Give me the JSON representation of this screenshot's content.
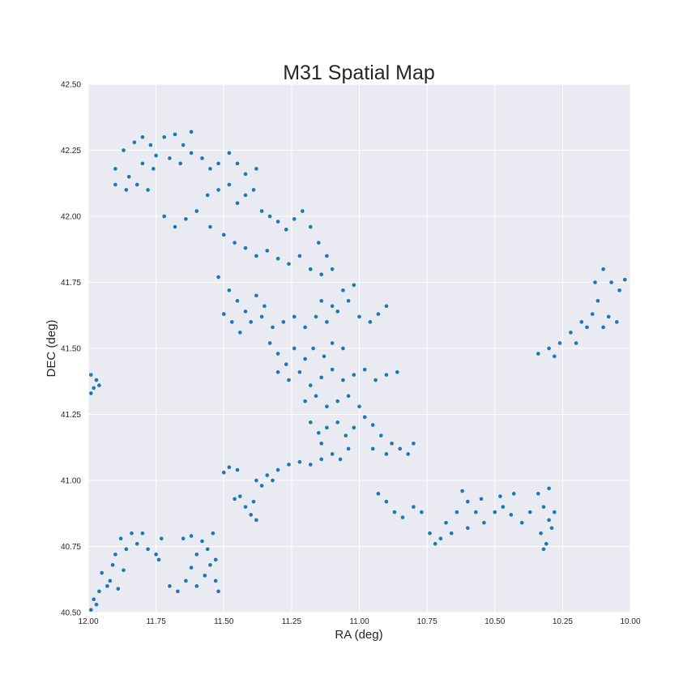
{
  "chart_data": {
    "type": "scatter",
    "title": "M31 Spatial Map",
    "xlabel": "RA (deg)",
    "ylabel": "DEC (deg)",
    "xlim": [
      12.0,
      10.0
    ],
    "ylim": [
      40.5,
      42.5
    ],
    "x_inverted": true,
    "grid": true,
    "legend": "none",
    "x_ticks": [
      "12.00",
      "11.75",
      "11.50",
      "11.25",
      "11.00",
      "10.75",
      "10.50",
      "10.25",
      "10.00"
    ],
    "x_tick_values": [
      12.0,
      11.75,
      11.5,
      11.25,
      11.0,
      10.75,
      10.5,
      10.25,
      10.0
    ],
    "y_ticks": [
      "40.50",
      "40.75",
      "41.00",
      "41.25",
      "41.50",
      "41.75",
      "42.00",
      "42.25",
      "42.50"
    ],
    "y_tick_values": [
      40.5,
      40.75,
      41.0,
      41.25,
      41.5,
      41.75,
      42.0,
      42.25,
      42.5
    ],
    "colors": {
      "points": "#1f77b4",
      "point_edge": "#ffffff",
      "plot_background": "#eaeaf2",
      "grid": "#ffffff"
    },
    "series": [
      {
        "points": [
          [
            11.9,
            42.18
          ],
          [
            11.87,
            42.25
          ],
          [
            11.83,
            42.28
          ],
          [
            11.8,
            42.3
          ],
          [
            11.77,
            42.27
          ],
          [
            11.75,
            42.23
          ],
          [
            11.72,
            42.3
          ],
          [
            11.68,
            42.31
          ],
          [
            11.65,
            42.27
          ],
          [
            11.62,
            42.32
          ],
          [
            11.85,
            42.15
          ],
          [
            11.8,
            42.2
          ],
          [
            11.76,
            42.18
          ],
          [
            11.7,
            42.22
          ],
          [
            11.66,
            42.2
          ],
          [
            11.62,
            42.24
          ],
          [
            11.58,
            42.22
          ],
          [
            11.55,
            42.18
          ],
          [
            11.52,
            42.2
          ],
          [
            11.48,
            42.24
          ],
          [
            11.45,
            42.2
          ],
          [
            11.42,
            42.16
          ],
          [
            11.38,
            42.18
          ],
          [
            11.9,
            42.12
          ],
          [
            11.86,
            42.1
          ],
          [
            11.82,
            42.12
          ],
          [
            11.78,
            42.1
          ],
          [
            11.72,
            42.0
          ],
          [
            11.68,
            41.96
          ],
          [
            11.64,
            41.99
          ],
          [
            11.6,
            42.02
          ],
          [
            11.56,
            42.08
          ],
          [
            11.52,
            42.1
          ],
          [
            11.48,
            42.12
          ],
          [
            11.45,
            42.05
          ],
          [
            11.42,
            42.08
          ],
          [
            11.39,
            42.1
          ],
          [
            11.36,
            42.02
          ],
          [
            11.33,
            42.0
          ],
          [
            11.3,
            41.98
          ],
          [
            11.27,
            41.95
          ],
          [
            11.24,
            41.99
          ],
          [
            11.21,
            42.02
          ],
          [
            11.18,
            41.96
          ],
          [
            11.15,
            41.9
          ],
          [
            11.12,
            41.85
          ],
          [
            11.1,
            41.8
          ],
          [
            11.55,
            41.96
          ],
          [
            11.5,
            41.93
          ],
          [
            11.46,
            41.9
          ],
          [
            11.42,
            41.88
          ],
          [
            11.38,
            41.85
          ],
          [
            11.34,
            41.87
          ],
          [
            11.3,
            41.84
          ],
          [
            11.26,
            41.82
          ],
          [
            11.22,
            41.85
          ],
          [
            11.18,
            41.8
          ],
          [
            11.14,
            41.78
          ],
          [
            11.52,
            41.77
          ],
          [
            11.48,
            41.72
          ],
          [
            11.45,
            41.68
          ],
          [
            11.42,
            41.64
          ],
          [
            11.38,
            41.7
          ],
          [
            11.35,
            41.66
          ],
          [
            11.5,
            41.63
          ],
          [
            11.47,
            41.6
          ],
          [
            11.44,
            41.56
          ],
          [
            11.4,
            41.6
          ],
          [
            11.36,
            41.62
          ],
          [
            11.32,
            41.58
          ],
          [
            11.28,
            41.6
          ],
          [
            11.24,
            41.62
          ],
          [
            11.2,
            41.58
          ],
          [
            11.16,
            41.62
          ],
          [
            11.12,
            41.6
          ],
          [
            11.08,
            41.64
          ],
          [
            11.04,
            41.68
          ],
          [
            11.0,
            41.62
          ],
          [
            10.96,
            41.6
          ],
          [
            10.93,
            41.63
          ],
          [
            10.9,
            41.66
          ],
          [
            11.06,
            41.72
          ],
          [
            11.02,
            41.74
          ],
          [
            11.1,
            41.66
          ],
          [
            11.14,
            41.68
          ],
          [
            11.33,
            41.52
          ],
          [
            11.3,
            41.48
          ],
          [
            11.27,
            41.44
          ],
          [
            11.24,
            41.5
          ],
          [
            11.2,
            41.46
          ],
          [
            11.17,
            41.5
          ],
          [
            11.13,
            41.47
          ],
          [
            11.1,
            41.52
          ],
          [
            11.06,
            41.5
          ],
          [
            11.3,
            41.41
          ],
          [
            11.26,
            41.38
          ],
          [
            11.22,
            41.41
          ],
          [
            11.18,
            41.36
          ],
          [
            11.14,
            41.39
          ],
          [
            11.1,
            41.42
          ],
          [
            11.06,
            41.38
          ],
          [
            11.02,
            41.4
          ],
          [
            10.98,
            41.42
          ],
          [
            10.94,
            41.38
          ],
          [
            10.9,
            41.4
          ],
          [
            10.86,
            41.41
          ],
          [
            11.2,
            41.3
          ],
          [
            11.16,
            41.32
          ],
          [
            11.12,
            41.28
          ],
          [
            11.08,
            41.3
          ],
          [
            11.04,
            41.32
          ],
          [
            11.0,
            41.28
          ],
          [
            11.18,
            41.22
          ],
          [
            11.15,
            41.18
          ],
          [
            11.12,
            41.2
          ],
          [
            11.08,
            41.22
          ],
          [
            11.05,
            41.17
          ],
          [
            11.02,
            41.2
          ],
          [
            10.98,
            41.24
          ],
          [
            10.95,
            41.21
          ],
          [
            10.92,
            41.17
          ],
          [
            10.88,
            41.14
          ],
          [
            10.85,
            41.12
          ],
          [
            10.82,
            41.1
          ],
          [
            10.8,
            41.14
          ],
          [
            11.1,
            41.1
          ],
          [
            11.07,
            41.08
          ],
          [
            11.04,
            41.12
          ],
          [
            11.14,
            41.14
          ],
          [
            10.95,
            41.12
          ],
          [
            10.9,
            41.1
          ],
          [
            11.38,
            41.0
          ],
          [
            11.34,
            41.02
          ],
          [
            11.3,
            41.04
          ],
          [
            11.26,
            41.06
          ],
          [
            11.22,
            41.07
          ],
          [
            11.18,
            41.06
          ],
          [
            11.14,
            41.08
          ],
          [
            11.36,
            40.98
          ],
          [
            11.32,
            41.0
          ],
          [
            11.48,
            41.05
          ],
          [
            11.5,
            41.03
          ],
          [
            11.45,
            41.04
          ],
          [
            11.44,
            40.94
          ],
          [
            11.42,
            40.9
          ],
          [
            11.4,
            40.87
          ],
          [
            11.38,
            40.85
          ],
          [
            11.46,
            40.93
          ],
          [
            11.39,
            40.92
          ],
          [
            10.93,
            40.95
          ],
          [
            10.9,
            40.92
          ],
          [
            10.87,
            40.88
          ],
          [
            10.84,
            40.86
          ],
          [
            10.8,
            40.9
          ],
          [
            10.77,
            40.88
          ],
          [
            10.74,
            40.8
          ],
          [
            10.72,
            40.76
          ],
          [
            10.7,
            40.78
          ],
          [
            10.68,
            40.84
          ],
          [
            10.64,
            40.88
          ],
          [
            10.6,
            40.92
          ],
          [
            10.57,
            40.88
          ],
          [
            10.54,
            40.84
          ],
          [
            10.5,
            40.88
          ],
          [
            10.47,
            40.9
          ],
          [
            10.44,
            40.87
          ],
          [
            10.4,
            40.84
          ],
          [
            10.37,
            40.88
          ],
          [
            10.62,
            40.96
          ],
          [
            10.55,
            40.93
          ],
          [
            10.48,
            40.94
          ],
          [
            10.43,
            40.95
          ],
          [
            10.66,
            40.8
          ],
          [
            10.6,
            40.82
          ],
          [
            10.34,
            40.95
          ],
          [
            10.32,
            40.9
          ],
          [
            10.3,
            40.85
          ],
          [
            10.33,
            40.8
          ],
          [
            10.31,
            40.76
          ],
          [
            10.29,
            40.82
          ],
          [
            10.32,
            40.74
          ],
          [
            10.28,
            40.88
          ],
          [
            10.3,
            40.97
          ],
          [
            10.34,
            41.48
          ],
          [
            10.3,
            41.5
          ],
          [
            10.26,
            41.52
          ],
          [
            10.22,
            41.56
          ],
          [
            10.18,
            41.6
          ],
          [
            10.14,
            41.63
          ],
          [
            10.12,
            41.68
          ],
          [
            10.13,
            41.75
          ],
          [
            10.1,
            41.8
          ],
          [
            10.07,
            41.75
          ],
          [
            10.04,
            41.72
          ],
          [
            10.02,
            41.76
          ],
          [
            10.08,
            41.62
          ],
          [
            10.05,
            41.6
          ],
          [
            10.1,
            41.58
          ],
          [
            10.16,
            41.58
          ],
          [
            10.2,
            41.52
          ],
          [
            10.28,
            41.47
          ],
          [
            11.99,
            41.4
          ],
          [
            11.98,
            41.35
          ],
          [
            11.97,
            41.38
          ],
          [
            11.96,
            41.36
          ],
          [
            11.99,
            41.33
          ],
          [
            11.95,
            40.65
          ],
          [
            11.93,
            40.6
          ],
          [
            11.91,
            40.68
          ],
          [
            11.9,
            40.72
          ],
          [
            11.88,
            40.78
          ],
          [
            11.86,
            40.74
          ],
          [
            11.84,
            40.8
          ],
          [
            11.82,
            40.76
          ],
          [
            11.8,
            40.8
          ],
          [
            11.78,
            40.74
          ],
          [
            11.75,
            40.72
          ],
          [
            11.73,
            40.78
          ],
          [
            11.74,
            40.7
          ],
          [
            11.92,
            40.62
          ],
          [
            11.89,
            40.59
          ],
          [
            11.87,
            40.66
          ],
          [
            11.96,
            40.58
          ],
          [
            11.98,
            40.55
          ],
          [
            11.99,
            40.51
          ],
          [
            11.97,
            40.53
          ],
          [
            11.7,
            40.6
          ],
          [
            11.67,
            40.58
          ],
          [
            11.64,
            40.62
          ],
          [
            11.62,
            40.67
          ],
          [
            11.6,
            40.72
          ],
          [
            11.58,
            40.77
          ],
          [
            11.56,
            40.74
          ],
          [
            11.55,
            40.68
          ],
          [
            11.53,
            40.62
          ],
          [
            11.52,
            40.58
          ],
          [
            11.6,
            40.6
          ],
          [
            11.65,
            40.78
          ],
          [
            11.62,
            40.79
          ],
          [
            11.54,
            40.8
          ],
          [
            11.57,
            40.64
          ],
          [
            11.53,
            40.7
          ]
        ]
      }
    ]
  }
}
